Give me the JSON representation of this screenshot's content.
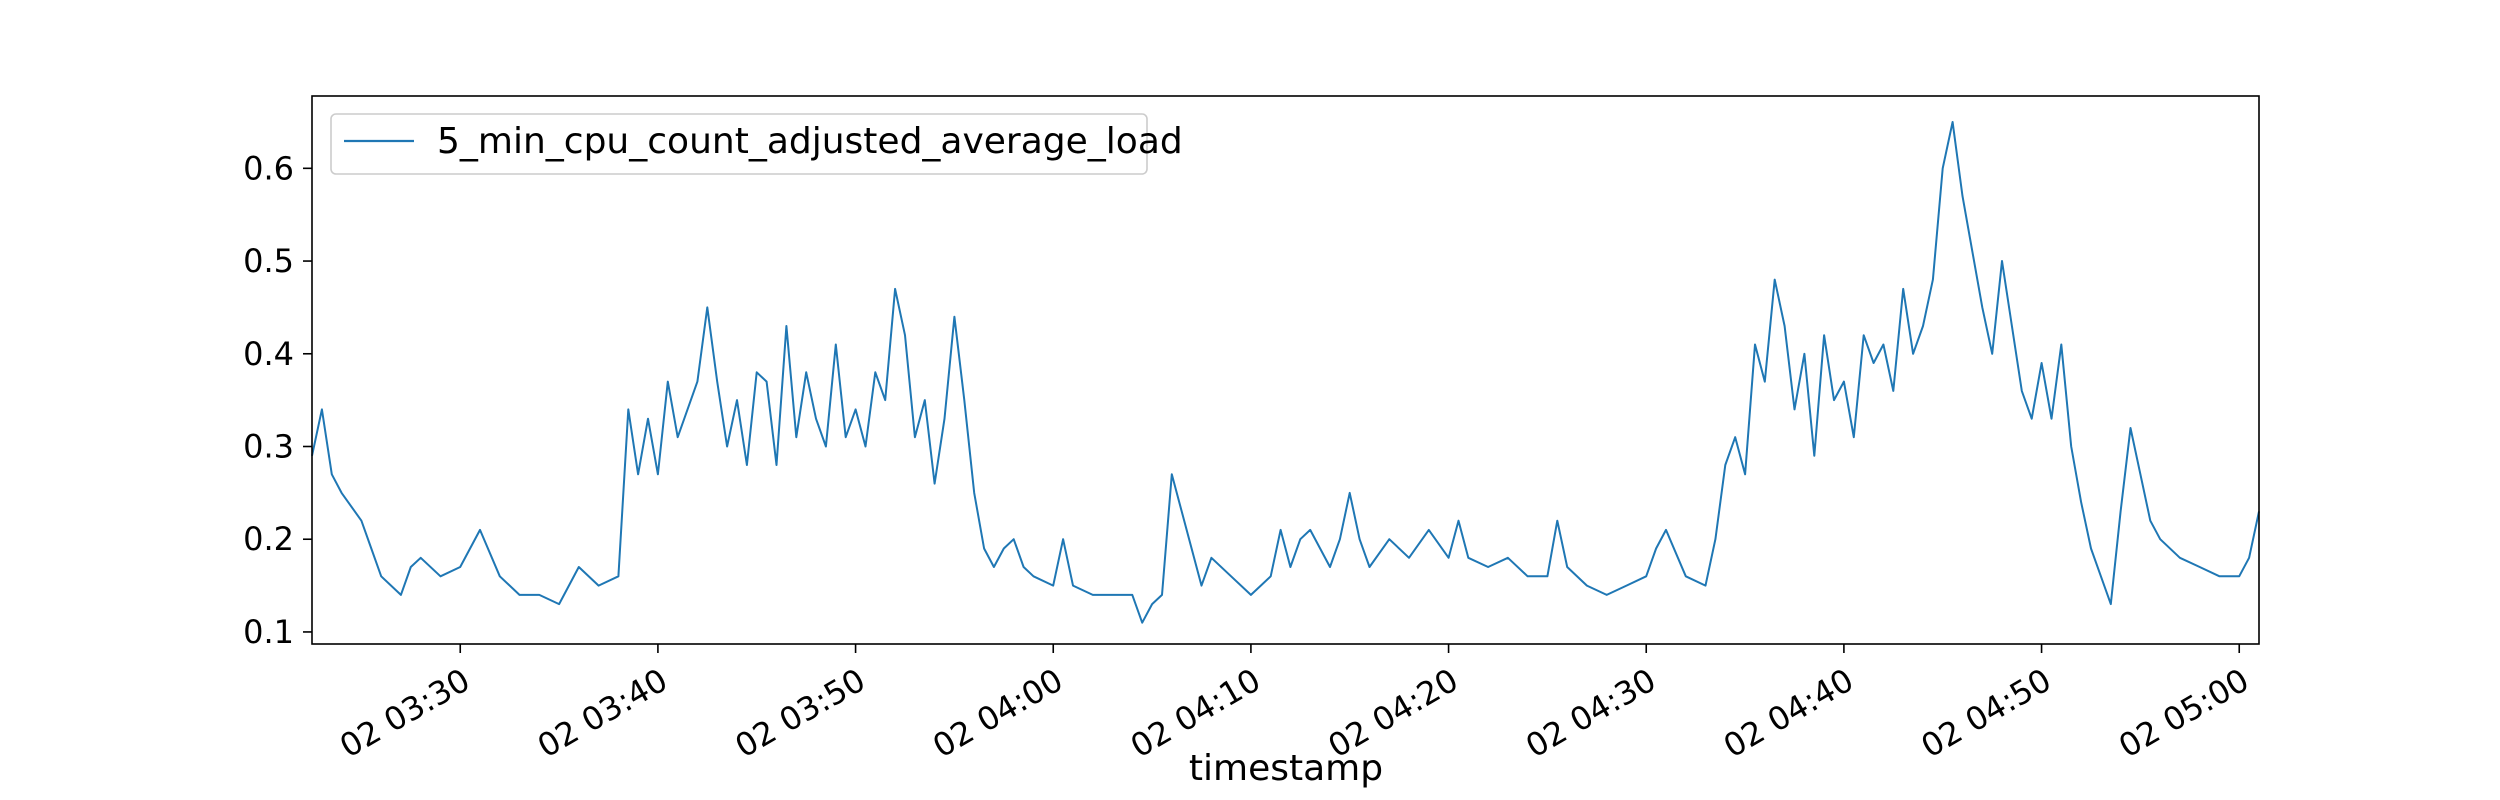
{
  "chart_data": {
    "type": "line",
    "title": "",
    "xlabel": "timestamp",
    "ylabel": "",
    "grid": false,
    "legend_position": "top-left",
    "x_start": "02 03:22:30",
    "x_end": "02 05:01:00",
    "xlim": [
      "02 03:22:30",
      "02 05:01:00"
    ],
    "ylim": [
      0.087,
      0.678
    ],
    "x_ticks": [
      "02 03:30",
      "02 03:40",
      "02 03:50",
      "02 04:00",
      "02 04:10",
      "02 04:20",
      "02 04:30",
      "02 04:40",
      "02 04:50",
      "02 05:00"
    ],
    "y_ticks": [
      "0.1",
      "0.2",
      "0.3",
      "0.4",
      "0.5",
      "0.6"
    ],
    "series": [
      {
        "name": "5_min_cpu_count_adjusted_average_load",
        "color": "#1f77b4",
        "points": [
          [
            "02 03:22:30",
            0.29
          ],
          [
            "02 03:23:00",
            0.34
          ],
          [
            "02 03:23:30",
            0.27
          ],
          [
            "02 03:24:00",
            0.25
          ],
          [
            "02 03:25:00",
            0.22
          ],
          [
            "02 03:25:30",
            0.19
          ],
          [
            "02 03:26:00",
            0.16
          ],
          [
            "02 03:27:00",
            0.14
          ],
          [
            "02 03:27:30",
            0.17
          ],
          [
            "02 03:28:00",
            0.18
          ],
          [
            "02 03:29:00",
            0.16
          ],
          [
            "02 03:30:00",
            0.17
          ],
          [
            "02 03:31:00",
            0.21
          ],
          [
            "02 03:32:00",
            0.16
          ],
          [
            "02 03:33:00",
            0.14
          ],
          [
            "02 03:34:00",
            0.14
          ],
          [
            "02 03:35:00",
            0.13
          ],
          [
            "02 03:36:00",
            0.17
          ],
          [
            "02 03:37:00",
            0.15
          ],
          [
            "02 03:38:00",
            0.16
          ],
          [
            "02 03:38:30",
            0.34
          ],
          [
            "02 03:39:00",
            0.27
          ],
          [
            "02 03:39:30",
            0.33
          ],
          [
            "02 03:40:00",
            0.27
          ],
          [
            "02 03:40:30",
            0.37
          ],
          [
            "02 03:41:00",
            0.31
          ],
          [
            "02 03:42:00",
            0.37
          ],
          [
            "02 03:42:30",
            0.45
          ],
          [
            "02 03:43:00",
            0.37
          ],
          [
            "02 03:43:30",
            0.3
          ],
          [
            "02 03:44:00",
            0.35
          ],
          [
            "02 03:44:30",
            0.28
          ],
          [
            "02 03:45:00",
            0.38
          ],
          [
            "02 03:45:30",
            0.37
          ],
          [
            "02 03:46:00",
            0.28
          ],
          [
            "02 03:46:30",
            0.43
          ],
          [
            "02 03:47:00",
            0.31
          ],
          [
            "02 03:47:30",
            0.38
          ],
          [
            "02 03:48:00",
            0.33
          ],
          [
            "02 03:48:30",
            0.3
          ],
          [
            "02 03:49:00",
            0.41
          ],
          [
            "02 03:49:30",
            0.31
          ],
          [
            "02 03:50:00",
            0.34
          ],
          [
            "02 03:50:30",
            0.3
          ],
          [
            "02 03:51:00",
            0.38
          ],
          [
            "02 03:51:30",
            0.35
          ],
          [
            "02 03:52:00",
            0.47
          ],
          [
            "02 03:52:30",
            0.42
          ],
          [
            "02 03:53:00",
            0.31
          ],
          [
            "02 03:53:30",
            0.35
          ],
          [
            "02 03:54:00",
            0.26
          ],
          [
            "02 03:54:30",
            0.33
          ],
          [
            "02 03:55:00",
            0.44
          ],
          [
            "02 03:55:30",
            0.35
          ],
          [
            "02 03:56:00",
            0.25
          ],
          [
            "02 03:56:30",
            0.19
          ],
          [
            "02 03:57:00",
            0.17
          ],
          [
            "02 03:57:30",
            0.19
          ],
          [
            "02 03:58:00",
            0.2
          ],
          [
            "02 03:58:30",
            0.17
          ],
          [
            "02 03:59:00",
            0.16
          ],
          [
            "02 04:00:00",
            0.15
          ],
          [
            "02 04:00:30",
            0.2
          ],
          [
            "02 04:01:00",
            0.15
          ],
          [
            "02 04:02:00",
            0.14
          ],
          [
            "02 04:03:00",
            0.14
          ],
          [
            "02 04:04:00",
            0.14
          ],
          [
            "02 04:04:30",
            0.11
          ],
          [
            "02 04:05:00",
            0.13
          ],
          [
            "02 04:05:30",
            0.14
          ],
          [
            "02 04:06:00",
            0.27
          ],
          [
            "02 04:06:30",
            0.23
          ],
          [
            "02 04:07:00",
            0.19
          ],
          [
            "02 04:07:30",
            0.15
          ],
          [
            "02 04:08:00",
            0.18
          ],
          [
            "02 04:09:00",
            0.16
          ],
          [
            "02 04:10:00",
            0.14
          ],
          [
            "02 04:10:30",
            0.15
          ],
          [
            "02 04:11:00",
            0.16
          ],
          [
            "02 04:11:30",
            0.21
          ],
          [
            "02 04:12:00",
            0.17
          ],
          [
            "02 04:12:30",
            0.2
          ],
          [
            "02 04:13:00",
            0.21
          ],
          [
            "02 04:14:00",
            0.17
          ],
          [
            "02 04:14:30",
            0.2
          ],
          [
            "02 04:15:00",
            0.25
          ],
          [
            "02 04:15:30",
            0.2
          ],
          [
            "02 04:16:00",
            0.17
          ],
          [
            "02 04:17:00",
            0.2
          ],
          [
            "02 04:18:00",
            0.18
          ],
          [
            "02 04:19:00",
            0.21
          ],
          [
            "02 04:20:00",
            0.18
          ],
          [
            "02 04:20:30",
            0.22
          ],
          [
            "02 04:21:00",
            0.18
          ],
          [
            "02 04:22:00",
            0.17
          ],
          [
            "02 04:23:00",
            0.18
          ],
          [
            "02 04:24:00",
            0.16
          ],
          [
            "02 04:25:00",
            0.16
          ],
          [
            "02 04:25:30",
            0.22
          ],
          [
            "02 04:26:00",
            0.17
          ],
          [
            "02 04:27:00",
            0.15
          ],
          [
            "02 04:28:00",
            0.14
          ],
          [
            "02 04:29:00",
            0.15
          ],
          [
            "02 04:30:00",
            0.16
          ],
          [
            "02 04:30:30",
            0.19
          ],
          [
            "02 04:31:00",
            0.21
          ],
          [
            "02 04:32:00",
            0.16
          ],
          [
            "02 04:33:00",
            0.15
          ],
          [
            "02 04:33:30",
            0.2
          ],
          [
            "02 04:34:00",
            0.28
          ],
          [
            "02 04:34:30",
            0.31
          ],
          [
            "02 04:35:00",
            0.27
          ],
          [
            "02 04:35:30",
            0.41
          ],
          [
            "02 04:36:00",
            0.37
          ],
          [
            "02 04:36:30",
            0.48
          ],
          [
            "02 04:37:00",
            0.43
          ],
          [
            "02 04:37:30",
            0.34
          ],
          [
            "02 04:38:00",
            0.4
          ],
          [
            "02 04:38:30",
            0.29
          ],
          [
            "02 04:39:00",
            0.42
          ],
          [
            "02 04:39:30",
            0.35
          ],
          [
            "02 04:40:00",
            0.37
          ],
          [
            "02 04:40:30",
            0.31
          ],
          [
            "02 04:41:00",
            0.42
          ],
          [
            "02 04:41:30",
            0.39
          ],
          [
            "02 04:42:00",
            0.41
          ],
          [
            "02 04:42:30",
            0.36
          ],
          [
            "02 04:43:00",
            0.47
          ],
          [
            "02 04:43:30",
            0.4
          ],
          [
            "02 04:44:00",
            0.43
          ],
          [
            "02 04:44:30",
            0.48
          ],
          [
            "02 04:45:00",
            0.6
          ],
          [
            "02 04:45:30",
            0.65
          ],
          [
            "02 04:46:00",
            0.57
          ],
          [
            "02 04:46:30",
            0.51
          ],
          [
            "02 04:47:00",
            0.45
          ],
          [
            "02 04:47:30",
            0.4
          ],
          [
            "02 04:48:00",
            0.5
          ],
          [
            "02 04:48:30",
            0.43
          ],
          [
            "02 04:49:00",
            0.36
          ],
          [
            "02 04:49:30",
            0.33
          ],
          [
            "02 04:50:00",
            0.39
          ],
          [
            "02 04:50:30",
            0.33
          ],
          [
            "02 04:51:00",
            0.41
          ],
          [
            "02 04:51:30",
            0.3
          ],
          [
            "02 04:52:00",
            0.24
          ],
          [
            "02 04:52:30",
            0.19
          ],
          [
            "02 04:53:00",
            0.16
          ],
          [
            "02 04:53:30",
            0.13
          ],
          [
            "02 04:54:00",
            0.23
          ],
          [
            "02 04:54:30",
            0.32
          ],
          [
            "02 04:55:00",
            0.27
          ],
          [
            "02 04:55:30",
            0.22
          ],
          [
            "02 04:56:00",
            0.2
          ],
          [
            "02 04:57:00",
            0.18
          ],
          [
            "02 04:58:00",
            0.17
          ],
          [
            "02 04:59:00",
            0.16
          ],
          [
            "02 05:00:00",
            0.16
          ],
          [
            "02 05:00:30",
            0.18
          ],
          [
            "02 05:01:00",
            0.23
          ]
        ]
      }
    ]
  }
}
